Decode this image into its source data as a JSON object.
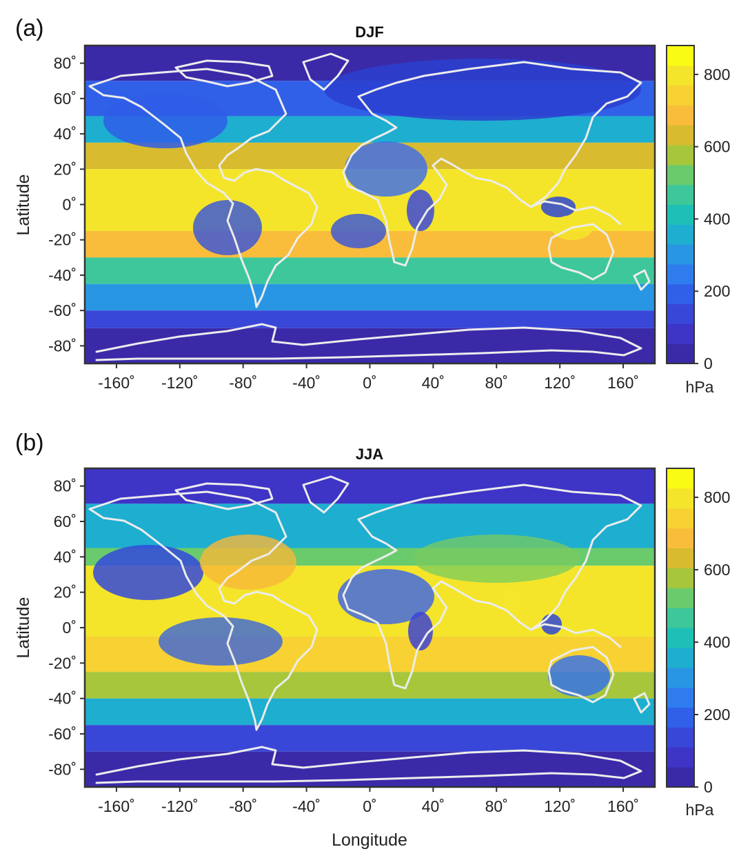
{
  "chart_data": [
    {
      "type": "heatmap",
      "panel_label": "(a)",
      "title": "DJF",
      "xlabel": "",
      "ylabel": "Latitude",
      "xlim": [
        -180,
        180
      ],
      "ylim": [
        -90,
        90
      ],
      "x_ticks": [
        -160,
        -120,
        -80,
        -40,
        0,
        40,
        80,
        120,
        160
      ],
      "x_tick_labels": [
        "-160˚",
        "-120˚",
        "-80˚",
        "-40˚",
        "0˚",
        "40˚",
        "80˚",
        "120˚",
        "160˚"
      ],
      "y_ticks": [
        80,
        60,
        40,
        20,
        0,
        -20,
        -40,
        -60,
        -80
      ],
      "y_tick_labels": [
        "80˚",
        "60˚",
        "40˚",
        "20˚",
        "0˚",
        "-20˚",
        "-40˚",
        "-60˚",
        "-80˚"
      ],
      "colorbar": {
        "range": [
          0,
          880
        ],
        "ticks": [
          0,
          200,
          400,
          600,
          800
        ],
        "tick_labels": [
          "0",
          "200",
          "400",
          "600",
          "800"
        ],
        "unit": "hPa"
      },
      "lat_bands": [
        {
          "lat": [
            70,
            90
          ],
          "value": 40
        },
        {
          "lat": [
            50,
            70
          ],
          "value": 200
        },
        {
          "lat": [
            35,
            50
          ],
          "value": 380
        },
        {
          "lat": [
            20,
            35
          ],
          "value": 620
        },
        {
          "lat": [
            -15,
            20
          ],
          "value": 780
        },
        {
          "lat": [
            -30,
            -15
          ],
          "value": 700
        },
        {
          "lat": [
            -45,
            -30
          ],
          "value": 480
        },
        {
          "lat": [
            -60,
            -45
          ],
          "value": 280
        },
        {
          "lat": [
            -70,
            -60
          ],
          "value": 130
        },
        {
          "lat": [
            -90,
            -70
          ],
          "value": 40
        }
      ]
    },
    {
      "type": "heatmap",
      "panel_label": "(b)",
      "title": "JJA",
      "xlabel": "Longitude",
      "ylabel": "Latitude",
      "xlim": [
        -180,
        180
      ],
      "ylim": [
        -90,
        90
      ],
      "x_ticks": [
        -160,
        -120,
        -80,
        -40,
        0,
        40,
        80,
        120,
        160
      ],
      "x_tick_labels": [
        "-160˚",
        "-120˚",
        "-80˚",
        "-40˚",
        "0˚",
        "40˚",
        "80˚",
        "120˚",
        "160˚"
      ],
      "y_ticks": [
        80,
        60,
        40,
        20,
        0,
        -20,
        -40,
        -60,
        -80
      ],
      "y_tick_labels": [
        "80˚",
        "60˚",
        "40˚",
        "20˚",
        "0˚",
        "-20˚",
        "-40˚",
        "-60˚",
        "-80˚"
      ],
      "colorbar": {
        "range": [
          0,
          880
        ],
        "ticks": [
          0,
          200,
          400,
          600,
          800
        ],
        "tick_labels": [
          "0",
          "200",
          "400",
          "600",
          "800"
        ],
        "unit": "hPa"
      },
      "lat_bands": [
        {
          "lat": [
            70,
            90
          ],
          "value": 60
        },
        {
          "lat": [
            45,
            70
          ],
          "value": 330
        },
        {
          "lat": [
            35,
            45
          ],
          "value": 500
        },
        {
          "lat": [
            -5,
            35
          ],
          "value": 780
        },
        {
          "lat": [
            -25,
            -5
          ],
          "value": 720
        },
        {
          "lat": [
            -40,
            -25
          ],
          "value": 600
        },
        {
          "lat": [
            -55,
            -40
          ],
          "value": 360
        },
        {
          "lat": [
            -70,
            -55
          ],
          "value": 160
        },
        {
          "lat": [
            -90,
            -70
          ],
          "value": 40
        }
      ]
    }
  ]
}
